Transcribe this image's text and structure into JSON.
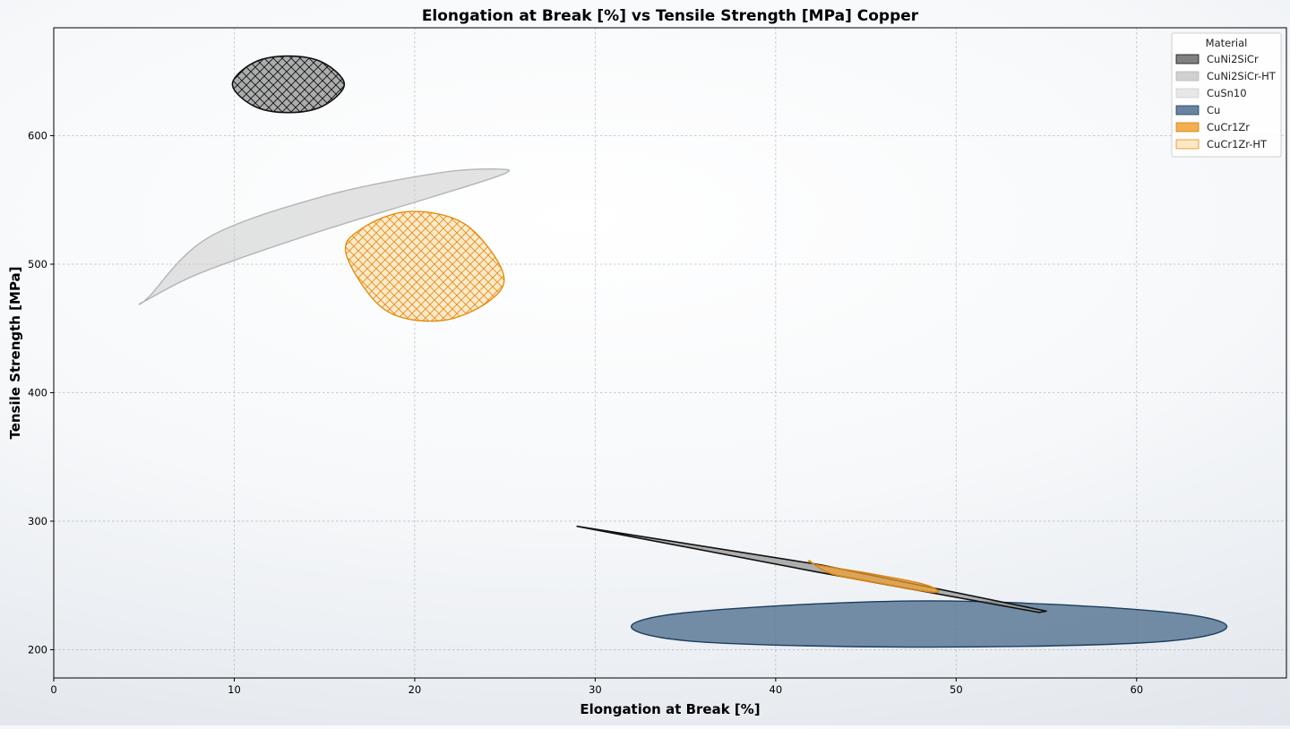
{
  "chart_data": {
    "type": "scatter",
    "title": "Elongation at Break [%] vs Tensile Strength [MPa] Copper",
    "xlabel": "Elongation at Break [%]",
    "ylabel": "Tensile Strength [MPa]",
    "xlim": [
      0,
      68.3
    ],
    "ylim": [
      178,
      684
    ],
    "xticks": [
      0,
      10,
      20,
      30,
      40,
      50,
      60
    ],
    "yticks": [
      200,
      300,
      400,
      500,
      600
    ],
    "grid": true,
    "legend": {
      "title": "Material",
      "placement": "top-right"
    },
    "series": [
      {
        "name": "CuNi2SiCr",
        "color": "#6b6b6b",
        "edge": "#111111",
        "hatch": true,
        "outline": [
          [
            9.9,
            640
          ],
          [
            11.1,
            657
          ],
          [
            13,
            662
          ],
          [
            14.9,
            657
          ],
          [
            16.1,
            640
          ],
          [
            14.9,
            623
          ],
          [
            13,
            618
          ],
          [
            11.1,
            623
          ]
        ]
      },
      {
        "name": "CuNi2SiCr-HT",
        "color": "#c8c8c8",
        "edge": "#b5b5b5",
        "hatch": false,
        "outline": [
          [
            5,
            471
          ],
          [
            8.1,
            493
          ],
          [
            14.4,
            524
          ],
          [
            20.9,
            552
          ],
          [
            24.9,
            570
          ],
          [
            24.6,
            574
          ],
          [
            21.3,
            571
          ],
          [
            15,
            553
          ],
          [
            8.6,
            521
          ],
          [
            5.3,
            475
          ]
        ]
      },
      {
        "name": "CuSn10",
        "color": "#e3e3e3",
        "edge": "#d0d0d0",
        "hatch": false,
        "outline": []
      },
      {
        "name": "Cu",
        "color": "#4f6f8f",
        "edge": "#1d3d5e",
        "hatch": false,
        "outline": [
          [
            32,
            218
          ],
          [
            35.9,
            230
          ],
          [
            48.5,
            238
          ],
          [
            61.1,
            230
          ],
          [
            65,
            218
          ],
          [
            61.1,
            206
          ],
          [
            48.5,
            202
          ],
          [
            35.9,
            206
          ]
        ]
      },
      {
        "name": "CuCr1Zr",
        "color": "#f0a030",
        "edge": "#d7820c",
        "hatch": false,
        "outline": [
          [
            41.9,
            269
          ],
          [
            42.3,
            266
          ],
          [
            44.9,
            260
          ],
          [
            47.9,
            252
          ],
          [
            49,
            246
          ],
          [
            48.5,
            245
          ],
          [
            46,
            251
          ],
          [
            43.1,
            259
          ]
        ]
      },
      {
        "name": "CuCr1Zr-HT",
        "color": "#fce3bd",
        "edge": "#e58e10",
        "hatch": true,
        "outline": [
          [
            16.2,
            508
          ],
          [
            17.1,
            528
          ],
          [
            19.7,
            541
          ],
          [
            22.8,
            531
          ],
          [
            24.9,
            493
          ],
          [
            24.1,
            471
          ],
          [
            21.4,
            456
          ],
          [
            18.3,
            465
          ]
        ]
      },
      {
        "name": "",
        "color": "#9a9a9a",
        "edge": "#111111",
        "hatch": false,
        "outline": [
          [
            29,
            296
          ],
          [
            42.5,
            266
          ],
          [
            55,
            230
          ],
          [
            54.6,
            229
          ],
          [
            42.1,
            261
          ]
        ]
      }
    ]
  }
}
